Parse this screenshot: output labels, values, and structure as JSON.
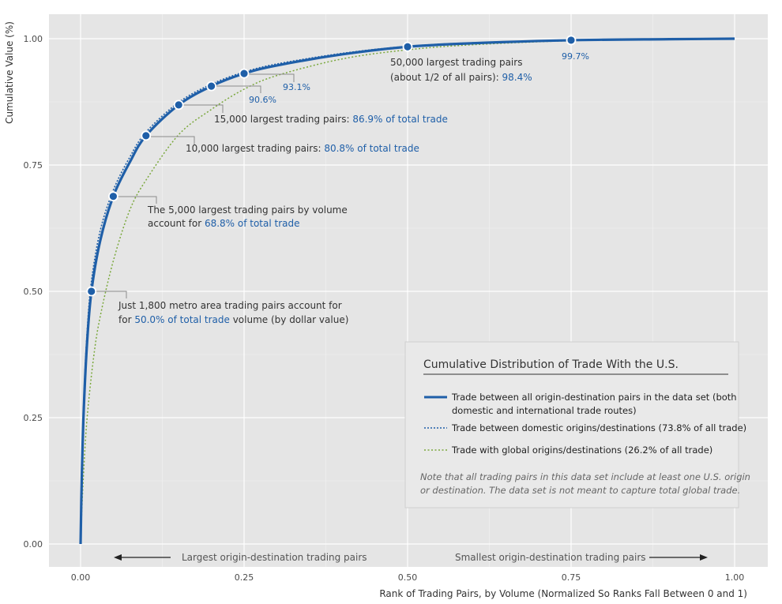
{
  "chart_data": {
    "type": "line",
    "xlabel": "Rank of Trading Pairs, by Volume (Normalized So Ranks Fall Between 0 and 1)",
    "ylabel": "Cumulative Value (%)",
    "xlim": [
      0,
      1
    ],
    "ylim": [
      0,
      1
    ],
    "xticks": [
      "0.00",
      "0.25",
      "0.50",
      "0.75",
      "1.00"
    ],
    "yticks": [
      "0.00",
      "0.25",
      "0.50",
      "0.75",
      "1.00"
    ],
    "grid": true,
    "series": [
      {
        "name": "Trade between all origin-destination pairs in the data set (both domestic and international trade routes)",
        "style": "solid",
        "color": "#1f5fa8",
        "x": [
          0,
          0.002,
          0.005,
          0.01,
          0.0166,
          0.03,
          0.05,
          0.075,
          0.1,
          0.15,
          0.2,
          0.25,
          0.3,
          0.4,
          0.5,
          0.6,
          0.75,
          0.9,
          1.0
        ],
        "y": [
          0.0,
          0.14,
          0.27,
          0.4,
          0.5,
          0.6,
          0.688,
          0.755,
          0.808,
          0.869,
          0.906,
          0.931,
          0.947,
          0.969,
          0.984,
          0.991,
          0.997,
          0.999,
          1.0
        ]
      },
      {
        "name": "Trade between domestic origins/destinations (73.8% of all trade)",
        "style": "dotted",
        "color": "#1f5fa8",
        "x": [
          0,
          0.002,
          0.005,
          0.01,
          0.0166,
          0.03,
          0.05,
          0.075,
          0.1,
          0.15,
          0.2,
          0.25,
          0.3,
          0.4,
          0.5,
          0.6,
          0.75,
          0.9,
          1.0
        ],
        "y": [
          0.0,
          0.15,
          0.29,
          0.42,
          0.52,
          0.62,
          0.7,
          0.765,
          0.815,
          0.874,
          0.91,
          0.934,
          0.95,
          0.971,
          0.985,
          0.992,
          0.997,
          0.999,
          1.0
        ]
      },
      {
        "name": "Trade with global origins/destinations (26.2% of all trade)",
        "style": "dotted",
        "color": "#7aa83c",
        "x": [
          0,
          0.002,
          0.005,
          0.01,
          0.02,
          0.03,
          0.05,
          0.075,
          0.1,
          0.15,
          0.2,
          0.25,
          0.3,
          0.4,
          0.5,
          0.6,
          0.75,
          0.9,
          1.0
        ],
        "y": [
          0.0,
          0.07,
          0.15,
          0.25,
          0.37,
          0.45,
          0.56,
          0.66,
          0.72,
          0.81,
          0.86,
          0.9,
          0.927,
          0.96,
          0.978,
          0.988,
          0.996,
          0.999,
          1.0
        ]
      }
    ],
    "points": [
      {
        "x": 0.0166,
        "y": 0.5
      },
      {
        "x": 0.05,
        "y": 0.688
      },
      {
        "x": 0.1,
        "y": 0.808
      },
      {
        "x": 0.15,
        "y": 0.869
      },
      {
        "x": 0.2,
        "y": 0.906
      },
      {
        "x": 0.25,
        "y": 0.931
      },
      {
        "x": 0.5,
        "y": 0.984
      },
      {
        "x": 0.75,
        "y": 0.997
      }
    ],
    "annotations": {
      "a1800_line1": "Just 1,800 metro area trading pairs account for",
      "a1800_line2_pre": "for ",
      "a1800_line2_hl": "50.0% of total trade",
      "a1800_line2_post": " volume (by dollar value)",
      "a5000_line1": "The 5,000 largest trading pairs by volume",
      "a5000_line2_pre": "account for ",
      "a5000_line2_hl": "68.8% of total trade",
      "a10000_pre": "10,000 largest trading pairs: ",
      "a10000_hl": "80.8% of total trade",
      "a15000_pre": "15,000 largest trading pairs: ",
      "a15000_hl": "86.9% of total trade",
      "p906": "90.6%",
      "p931": "93.1%",
      "a50000_line1": "50,000 largest trading pairs",
      "a50000_line2_pre": "(about 1/2 of all pairs): ",
      "a50000_line2_hl": "98.4%",
      "p997": "99.7%"
    },
    "arrows": {
      "left": "Largest origin-destination trading pairs",
      "right": "Smallest origin-destination trading pairs"
    },
    "legend": {
      "title": "Cumulative Distribution of Trade With the U.S.",
      "item1_line1": "Trade between all origin-destination pairs in the data set (both",
      "item1_line2": "domestic and international trade routes)",
      "item2": "Trade between domestic origins/destinations (73.8% of all trade)",
      "item3": "Trade with global origins/destinations (26.2% of all trade)",
      "note_line1": "Note that all trading pairs in this data set include at least one U.S. origin",
      "note_line2": "or destination. The data set is not meant to capture total global trade."
    },
    "colors": {
      "panel": "#e5e5e5",
      "grid": "#ffffff",
      "blue": "#1f5fa8",
      "green": "#7aa83c"
    }
  }
}
